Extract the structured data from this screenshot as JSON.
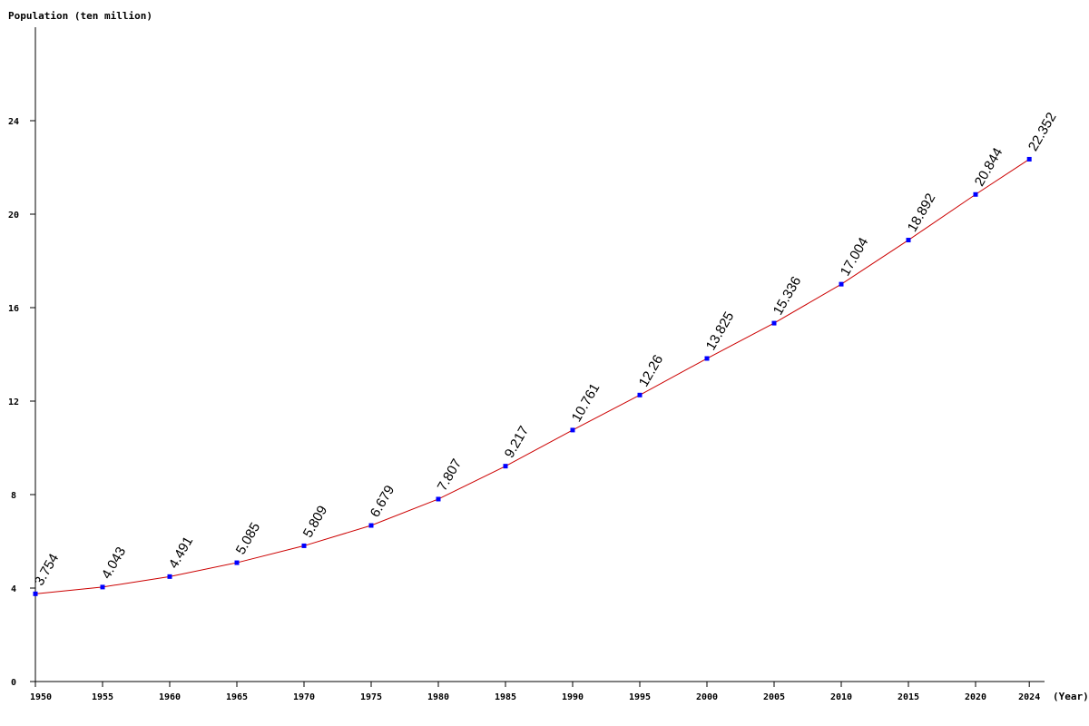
{
  "chart_data": {
    "type": "line",
    "ylabel": "Population (ten million)",
    "xlabel": "(Year)",
    "x": [
      "1950",
      "1955",
      "1960",
      "1965",
      "1970",
      "1975",
      "1980",
      "1985",
      "1990",
      "1995",
      "2000",
      "2005",
      "2010",
      "2015",
      "2020",
      "2024"
    ],
    "series": [
      {
        "values": [
          3.754,
          4.043,
          4.491,
          5.085,
          5.809,
          6.679,
          7.807,
          9.217,
          10.761,
          12.26,
          13.825,
          15.336,
          17.004,
          18.892,
          20.844,
          22.352
        ],
        "value_labels": [
          "3.754",
          "4.043",
          "4.491",
          "5.085",
          "5.809",
          "6.679",
          "7.807",
          "9.217",
          "10.761",
          "12.26",
          "13.825",
          "15.336",
          "17.004",
          "18.892",
          "20.844",
          "22.352"
        ],
        "line_color": "#cc0000",
        "marker_color": "#0000ff"
      }
    ],
    "ylim": [
      0,
      28
    ],
    "yticks": [
      "0",
      "4",
      "8",
      "12",
      "16",
      "20",
      "24"
    ],
    "grid": false
  }
}
